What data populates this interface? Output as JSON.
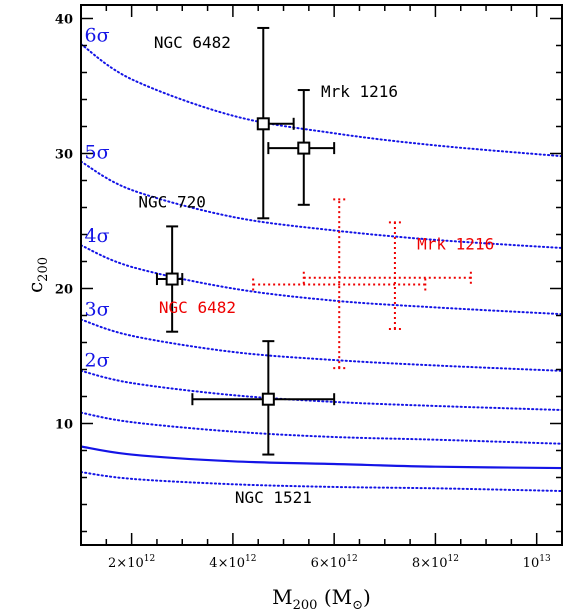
{
  "chart_data": {
    "type": "scatter",
    "title": "",
    "xlabel": "M",
    "xlabel_sub": "200",
    "xlabel_unit_open": "(M",
    "xlabel_unit_sym": "⊙",
    "xlabel_unit_close": ")",
    "ylabel": "c",
    "ylabel_sub": "200",
    "xlim": [
      1000000000000.0,
      10500000000000.0
    ],
    "ylim": [
      1,
      41
    ],
    "grid": false,
    "x_ticks": [
      {
        "value": 2000000000000.0,
        "mantissa": "2×10",
        "exp": "12"
      },
      {
        "value": 4000000000000.0,
        "mantissa": "4×10",
        "exp": "12"
      },
      {
        "value": 6000000000000.0,
        "mantissa": "6×10",
        "exp": "12"
      },
      {
        "value": 8000000000000.0,
        "mantissa": "8×10",
        "exp": "12"
      },
      {
        "value": 10000000000000.0,
        "mantissa": "10",
        "exp": "13"
      }
    ],
    "y_ticks": [
      {
        "value": 10,
        "label": "10"
      },
      {
        "value": 20,
        "label": "20"
      },
      {
        "value": 30,
        "label": "30"
      },
      {
        "value": 40,
        "label": "40"
      }
    ],
    "colors": {
      "black": "#000000",
      "red": "#ee0000",
      "blue": "#1414e6"
    },
    "curves": [
      {
        "style": "solid",
        "label": "",
        "x": [
          1000000000000.0,
          2000000000000.0,
          4000000000000.0,
          6000000000000.0,
          8000000000000.0,
          10500000000000.0
        ],
        "y": [
          8.3,
          7.7,
          7.2,
          7.0,
          6.8,
          6.7
        ]
      },
      {
        "style": "dotted",
        "label": "",
        "x": [
          1000000000000.0,
          2000000000000.0,
          4000000000000.0,
          6000000000000.0,
          8000000000000.0,
          10500000000000.0
        ],
        "y": [
          6.4,
          5.9,
          5.5,
          5.3,
          5.2,
          5.0
        ]
      },
      {
        "style": "dotted",
        "label": "",
        "x": [
          1000000000000.0,
          2000000000000.0,
          4000000000000.0,
          6000000000000.0,
          8000000000000.0,
          10500000000000.0
        ],
        "y": [
          10.8,
          10.1,
          9.4,
          9.0,
          8.8,
          8.5
        ]
      },
      {
        "style": "dotted",
        "label": "2σ",
        "x": [
          1000000000000.0,
          2000000000000.0,
          4000000000000.0,
          6000000000000.0,
          8000000000000.0,
          10500000000000.0
        ],
        "y": [
          13.9,
          13.0,
          12.1,
          11.6,
          11.3,
          11.0
        ]
      },
      {
        "style": "dotted",
        "label": "3σ",
        "x": [
          1000000000000.0,
          2000000000000.0,
          4000000000000.0,
          6000000000000.0,
          8000000000000.0,
          10500000000000.0
        ],
        "y": [
          17.7,
          16.5,
          15.3,
          14.7,
          14.3,
          13.9
        ]
      },
      {
        "style": "dotted",
        "label": "4σ",
        "x": [
          1000000000000.0,
          2000000000000.0,
          4000000000000.0,
          6000000000000.0,
          8000000000000.0,
          10500000000000.0
        ],
        "y": [
          23.2,
          21.6,
          20.0,
          19.1,
          18.6,
          18.1
        ]
      },
      {
        "style": "dotted",
        "label": "5σ",
        "x": [
          1000000000000.0,
          2000000000000.0,
          4000000000000.0,
          6000000000000.0,
          8000000000000.0,
          10500000000000.0
        ],
        "y": [
          29.4,
          27.3,
          25.3,
          24.3,
          23.6,
          23.0
        ]
      },
      {
        "style": "dotted",
        "label": "6σ",
        "x": [
          1000000000000.0,
          2000000000000.0,
          4000000000000.0,
          6000000000000.0,
          8000000000000.0,
          10500000000000.0
        ],
        "y": [
          38.1,
          35.5,
          32.8,
          31.5,
          30.6,
          29.8
        ]
      }
    ],
    "points": [
      {
        "name": "NGC 6482",
        "color": "black",
        "x": 4600000000000.0,
        "y": 32.2,
        "xerr_lo": 4600000000000.0,
        "xerr_hi": 5200000000000.0,
        "yerr_lo": 25.2,
        "yerr_hi": 39.3,
        "style": "solid",
        "marker": true
      },
      {
        "name": "Mrk 1216",
        "color": "black",
        "x": 5400000000000.0,
        "y": 30.4,
        "xerr_lo": 4700000000000.0,
        "xerr_hi": 6000000000000.0,
        "yerr_lo": 26.2,
        "yerr_hi": 34.7,
        "style": "solid",
        "marker": true
      },
      {
        "name": "NGC 720",
        "color": "black",
        "x": 2800000000000.0,
        "y": 20.7,
        "xerr_lo": 2500000000000.0,
        "xerr_hi": 3000000000000.0,
        "yerr_lo": 16.8,
        "yerr_hi": 24.6,
        "style": "solid",
        "marker": true
      },
      {
        "name": "NGC 1521",
        "color": "black",
        "x": 4700000000000.0,
        "y": 11.8,
        "xerr_lo": 3200000000000.0,
        "xerr_hi": 6000000000000.0,
        "yerr_lo": 7.7,
        "yerr_hi": 16.1,
        "style": "solid",
        "marker": true
      },
      {
        "name": "NGC 6482",
        "color": "red",
        "x": 6100000000000.0,
        "y": 20.3,
        "xerr_lo": 4400000000000.0,
        "xerr_hi": 7800000000000.0,
        "yerr_lo": 14.1,
        "yerr_hi": 26.6,
        "style": "dotted",
        "marker": false
      },
      {
        "name": "Mrk 1216",
        "color": "red",
        "x": 7200000000000.0,
        "y": 20.8,
        "xerr_lo": 5400000000000.0,
        "xerr_hi": 8700000000000.0,
        "yerr_lo": 17.0,
        "yerr_hi": 24.9,
        "style": "dotted",
        "marker": false
      }
    ],
    "annotations": [
      {
        "text": "NGC 6482",
        "color": "black",
        "x": 3200000000000.0,
        "y": 37.8
      },
      {
        "text": "Mrk 1216",
        "color": "black",
        "x": 6500000000000.0,
        "y": 34.2
      },
      {
        "text": "NGC 720",
        "color": "black",
        "x": 2800000000000.0,
        "y": 26.0
      },
      {
        "text": "Mrk 1216",
        "color": "red",
        "x": 8400000000000.0,
        "y": 22.9
      },
      {
        "text": "NGC 6482",
        "color": "red",
        "x": 3300000000000.0,
        "y": 18.2
      },
      {
        "text": "NGC 1521",
        "color": "black",
        "x": 4800000000000.0,
        "y": 4.1
      }
    ]
  }
}
